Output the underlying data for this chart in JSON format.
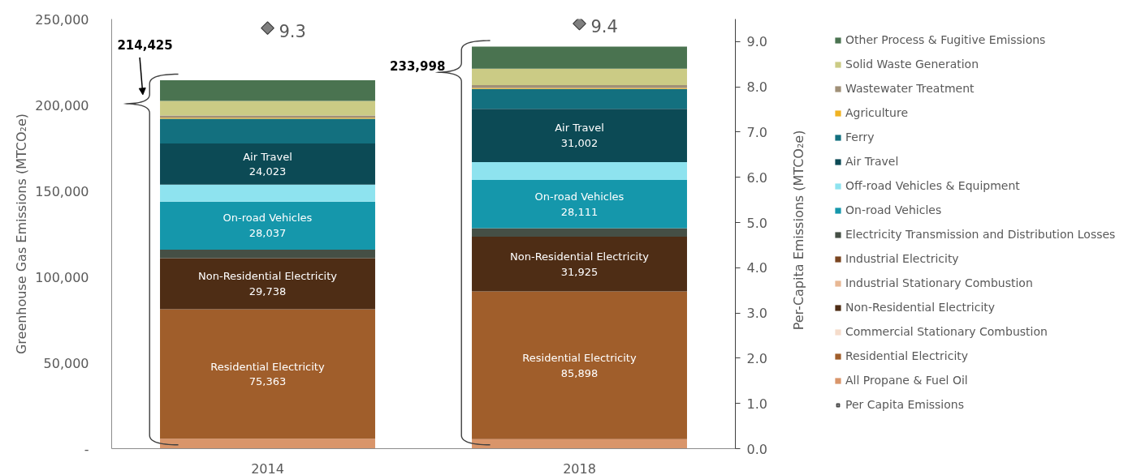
{
  "chart_data": {
    "type": "bar",
    "stacked": true,
    "categories": [
      "2014",
      "2018"
    ],
    "ylabel": "Greenhouse Gas Emissions (MTCO₂e)",
    "y2label": "Per-Capita Emissions (MTCO₂e)",
    "ylim": [
      0,
      250000
    ],
    "yticks": [
      {
        "value": 0,
        "label": "-"
      },
      {
        "value": 50000,
        "label": "50,000"
      },
      {
        "value": 100000,
        "label": "100,000"
      },
      {
        "value": 150000,
        "label": "150,000"
      },
      {
        "value": 200000,
        "label": "200,000"
      },
      {
        "value": 250000,
        "label": "250,000"
      }
    ],
    "y2lim": [
      0,
      9.5
    ],
    "y2ticks": [
      {
        "value": 0,
        "label": "0.0"
      },
      {
        "value": 1,
        "label": "1.0"
      },
      {
        "value": 2,
        "label": "2.0"
      },
      {
        "value": 3,
        "label": "3.0"
      },
      {
        "value": 4,
        "label": "4.0"
      },
      {
        "value": 5,
        "label": "5.0"
      },
      {
        "value": 6,
        "label": "6.0"
      },
      {
        "value": 7,
        "label": "7.0"
      },
      {
        "value": 8,
        "label": "8.0"
      },
      {
        "value": 9,
        "label": "9.0"
      }
    ],
    "grid": false,
    "legend": "right",
    "totals": [
      "214,425",
      "233,998"
    ],
    "series": [
      {
        "name": "All Propane & Fuel Oil",
        "color": "#d9956a",
        "values": [
          5764,
          5562
        ]
      },
      {
        "name": "Residential Electricity",
        "color": "#a05e2b",
        "values": [
          75363,
          85898
        ],
        "value_labels": [
          "75,363",
          "85,898"
        ]
      },
      {
        "name": "Commercial Stationary Combustion",
        "color": "#f5dccb",
        "values": [
          null,
          null
        ]
      },
      {
        "name": "Non-Residential Electricity",
        "color": "#4e2d15",
        "values": [
          29738,
          31925
        ],
        "value_labels": [
          "29,738",
          "31,925"
        ]
      },
      {
        "name": "Industrial Stationary Combustion",
        "color": "#e8b894",
        "values": [
          null,
          null
        ]
      },
      {
        "name": "Industrial Electricity",
        "color": "#7a4520",
        "values": [
          null,
          null
        ]
      },
      {
        "name": "Electricity Transmission and Distribution Losses",
        "color": "#454f45",
        "values": [
          4900,
          4900
        ]
      },
      {
        "name": "On-road Vehicles",
        "color": "#1597ab",
        "values": [
          28037,
          28111
        ],
        "value_labels": [
          "28,037",
          "28,111"
        ]
      },
      {
        "name": "Off-road Vehicles & Equipment",
        "color": "#8ee3ef",
        "values": [
          9800,
          10400
        ]
      },
      {
        "name": "Air Travel",
        "color": "#0c4a55",
        "values": [
          24023,
          31002
        ],
        "value_labels": [
          "24,023",
          "31,002"
        ]
      },
      {
        "name": "Ferry",
        "color": "#13707f",
        "values": [
          14300,
          11500
        ]
      },
      {
        "name": "Agriculture",
        "color": "#f0b323",
        "values": [
          600,
          600
        ]
      },
      {
        "name": "Wastewater Treatment",
        "color": "#a09078",
        "values": [
          1400,
          1600
        ]
      },
      {
        "name": "Solid Waste Generation",
        "color": "#cbcb85",
        "values": [
          8400,
          9600
        ]
      },
      {
        "name": "Other Process & Fugitive Emissions",
        "color": "#4a7350",
        "values": [
          12100,
          12900
        ]
      },
      {
        "name": "Per Capita Emissions",
        "type": "scatter",
        "axis": "y2",
        "marker": "diamond",
        "color": "#7f7f7f",
        "values": [
          9.3,
          9.4
        ],
        "value_labels": [
          "9.3",
          "9.4"
        ]
      }
    ]
  }
}
